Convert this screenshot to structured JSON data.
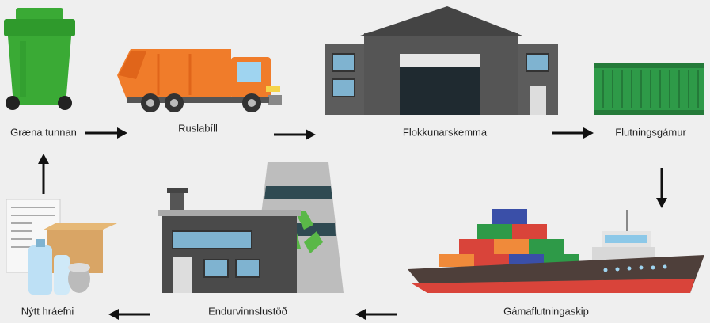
{
  "nodes": [
    {
      "label": "Græna tunnan"
    },
    {
      "label": "Ruslabíll"
    },
    {
      "label": "Flokkunarskemma"
    },
    {
      "label": "Flutningsgámur"
    },
    {
      "label": "Gámaflutningaskip"
    },
    {
      "label": "Endurvinnslustöð"
    },
    {
      "label": "Nýtt hráefni"
    }
  ]
}
